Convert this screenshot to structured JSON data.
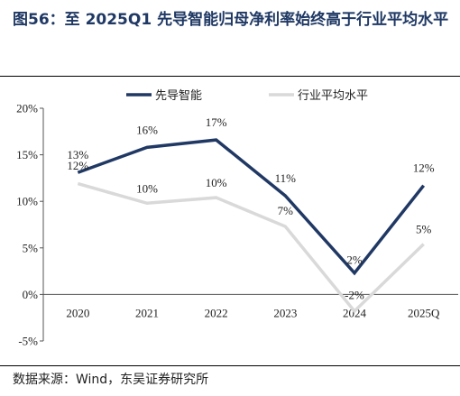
{
  "title": "图56：至 2025Q1 先导智能归母净利率始终高于行业平均水平",
  "source": "数据来源：Wind，东吴证券研究所",
  "chart_data": {
    "type": "line",
    "categories": [
      "2020",
      "2021",
      "2022",
      "2023",
      "2024",
      "2025Q"
    ],
    "ylim": [
      -5,
      20
    ],
    "yticks": [
      -5,
      0,
      5,
      10,
      15,
      20
    ],
    "ytick_labels": [
      "-5%",
      "0%",
      "5%",
      "10%",
      "15%",
      "20%"
    ],
    "grid": false,
    "legend_position": "top",
    "series": [
      {
        "name": "先导智能",
        "color": "#203864",
        "values": [
          13.1,
          15.8,
          16.6,
          10.6,
          2.3,
          11.7
        ],
        "labels": [
          "13%",
          "16%",
          "17%",
          "11%",
          "2%",
          "12%"
        ]
      },
      {
        "name": "行业平均水平",
        "color": "#d9d9d9",
        "values": [
          11.9,
          9.8,
          10.4,
          7.3,
          -1.8,
          5.4
        ],
        "labels": [
          "12%",
          "10%",
          "10%",
          "7%",
          "-2%",
          "5%"
        ]
      }
    ]
  }
}
